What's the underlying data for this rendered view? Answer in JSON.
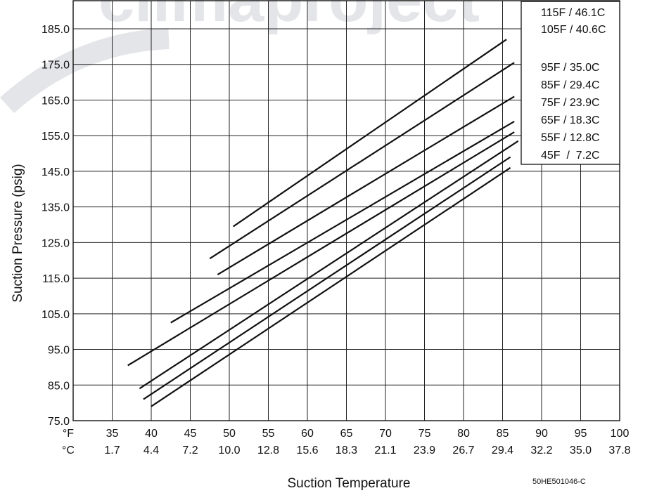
{
  "chart_data": {
    "type": "line",
    "xlabel": "Suction Temperature",
    "ylabel": "Suction Pressure (psig)",
    "x_unit_labels": [
      "°F",
      "°C"
    ],
    "xlim": [
      30,
      100
    ],
    "ylim": [
      75,
      185
    ],
    "y_ticks": [
      "185.0",
      "175.0",
      "165.0",
      "155.0",
      "145.0",
      "135.0",
      "125.0",
      "115.0",
      "105.0",
      "95.0",
      "85.0",
      "75.0"
    ],
    "x_ticks_f": [
      "35",
      "40",
      "45",
      "50",
      "55",
      "60",
      "65",
      "70",
      "75",
      "80",
      "85",
      "90",
      "95",
      "100"
    ],
    "x_ticks_c": [
      "1.7",
      "4.4",
      "7.2",
      "10.0",
      "12.8",
      "15.6",
      "18.3",
      "21.1",
      "23.9",
      "26.7",
      "29.4",
      "32.2",
      "35.0",
      "37.8"
    ],
    "grid": true,
    "legend_position": "top-right",
    "legend": [
      "115F / 46.1C",
      "105F / 40.6C",
      "95F / 35.0C",
      "85F / 29.4C",
      "75F / 23.9C",
      "65F / 18.3C",
      "55F / 12.8C",
      "45F  /  7.2C"
    ],
    "series": [
      {
        "name": "115F / 46.1C",
        "x": [
          50.5,
          85.5
        ],
        "y": [
          129.5,
          182.0
        ]
      },
      {
        "name": "105F / 40.6C",
        "x": [
          47.5,
          86.5
        ],
        "y": [
          120.5,
          175.5
        ]
      },
      {
        "name": "95F / 35.0C",
        "x": [
          48.5,
          86.5
        ],
        "y": [
          116.0,
          166.0
        ]
      },
      {
        "name": "85F / 29.4C",
        "x": [
          42.5,
          86.5
        ],
        "y": [
          102.5,
          159.0
        ]
      },
      {
        "name": "75F / 23.9C",
        "x": [
          37.0,
          86.5
        ],
        "y": [
          90.5,
          156.0
        ]
      },
      {
        "name": "65F / 18.3C",
        "x": [
          38.5,
          87.0
        ],
        "y": [
          84.0,
          153.5
        ]
      },
      {
        "name": "55F / 12.8C",
        "x": [
          39.0,
          86.0
        ],
        "y": [
          81.0,
          149.0
        ]
      },
      {
        "name": "45F  /  7.2C",
        "x": [
          40.0,
          86.0
        ],
        "y": [
          79.0,
          146.0
        ]
      }
    ]
  },
  "figure_code": "50HE501046-C",
  "watermark": "climaproject"
}
